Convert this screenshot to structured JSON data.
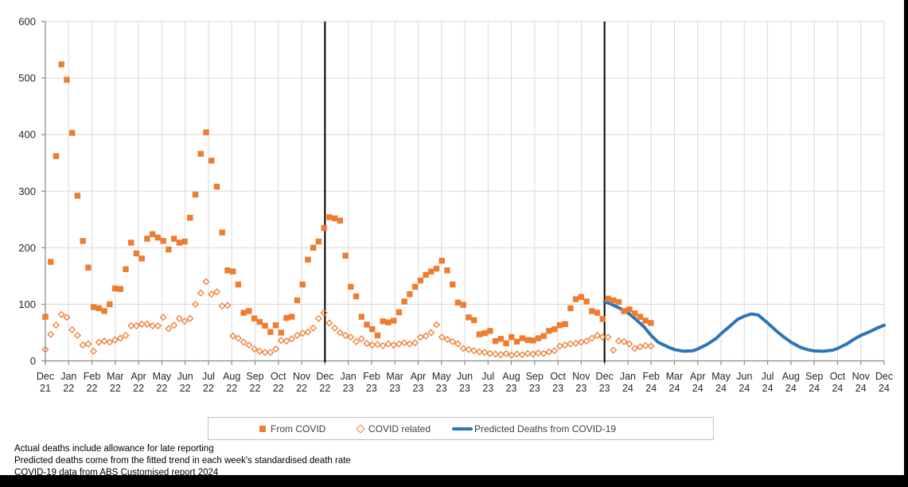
{
  "colors": {
    "accent_orange": "#ED7D31",
    "accent_blue": "#2E75B6",
    "gridline": "#D9D9D9",
    "axis": "#898989",
    "label": "#262626",
    "divider": "#000000"
  },
  "legend": {
    "items": [
      {
        "label": "From COVID",
        "marker": "filled-square"
      },
      {
        "label": "COVID related",
        "marker": "hollow-diamond"
      },
      {
        "label": "Predicted Deaths from COVID-19",
        "marker": "line"
      }
    ]
  },
  "footnotes": [
    "Actual deaths include allowance for late reporting",
    "Predicted deaths  come from the fitted trend in each week's standardised death rate",
    "COVID-19 data from ABS Customised report 2024"
  ],
  "chart_data": {
    "type": "scatter",
    "title": "",
    "xlabel": "",
    "ylabel": "",
    "grid": true,
    "legend_position": "bottom",
    "y_axis": {
      "min": 0,
      "max": 600,
      "step": 100,
      "tick_labels": [
        "0",
        "100",
        "200",
        "300",
        "400",
        "500",
        "600"
      ]
    },
    "x_months": [
      {
        "m": "Dec",
        "y": "21"
      },
      {
        "m": "Jan",
        "y": "22"
      },
      {
        "m": "Feb",
        "y": "22"
      },
      {
        "m": "Mar",
        "y": "22"
      },
      {
        "m": "Apr",
        "y": "22"
      },
      {
        "m": "May",
        "y": "22"
      },
      {
        "m": "Jun",
        "y": "22"
      },
      {
        "m": "Jul",
        "y": "22"
      },
      {
        "m": "Aug",
        "y": "22"
      },
      {
        "m": "Sep",
        "y": "22"
      },
      {
        "m": "Oct",
        "y": "22"
      },
      {
        "m": "Nov",
        "y": "22"
      },
      {
        "m": "Dec",
        "y": "22"
      },
      {
        "m": "Jan",
        "y": "23"
      },
      {
        "m": "Feb",
        "y": "23"
      },
      {
        "m": "Mar",
        "y": "23"
      },
      {
        "m": "Apr",
        "y": "23"
      },
      {
        "m": "May",
        "y": "23"
      },
      {
        "m": "Jun",
        "y": "23"
      },
      {
        "m": "Jul",
        "y": "23"
      },
      {
        "m": "Aug",
        "y": "23"
      },
      {
        "m": "Sep",
        "y": "23"
      },
      {
        "m": "Oct",
        "y": "23"
      },
      {
        "m": "Nov",
        "y": "23"
      },
      {
        "m": "Dec",
        "y": "23"
      },
      {
        "m": "Jan",
        "y": "24"
      },
      {
        "m": "Feb",
        "y": "24"
      },
      {
        "m": "Mar",
        "y": "24"
      },
      {
        "m": "Apr",
        "y": "24"
      },
      {
        "m": "May",
        "y": "24"
      },
      {
        "m": "Jun",
        "y": "24"
      },
      {
        "m": "Jul",
        "y": "24"
      },
      {
        "m": "Aug",
        "y": "24"
      },
      {
        "m": "Sep",
        "y": "24"
      },
      {
        "m": "Oct",
        "y": "24"
      },
      {
        "m": "Nov",
        "y": "24"
      },
      {
        "m": "Dec",
        "y": "24"
      }
    ],
    "event_divider_lines_at_month": [
      12,
      24
    ],
    "series": [
      {
        "name": "From COVID",
        "marker": "filled-square",
        "cadence": "weekly",
        "start_month": "Dec 2021",
        "values": [
          78,
          175,
          362,
          524,
          497,
          403,
          292,
          212,
          165,
          95,
          93,
          88,
          100,
          128,
          127,
          162,
          209,
          190,
          181,
          216,
          224,
          218,
          212,
          197,
          216,
          209,
          211,
          253,
          294,
          366,
          404,
          354,
          308,
          227,
          160,
          158,
          135,
          85,
          88,
          75,
          69,
          62,
          51,
          63,
          50,
          76,
          78,
          107,
          135,
          179,
          200,
          211,
          235,
          254,
          252,
          248,
          186,
          131,
          114,
          78,
          64,
          56,
          45,
          70,
          68,
          71,
          86,
          105,
          118,
          131,
          142,
          152,
          158,
          163,
          177,
          160,
          135,
          103,
          99,
          77,
          72,
          47,
          49,
          53,
          35,
          39,
          31,
          42,
          34,
          40,
          37,
          36,
          40,
          44,
          53,
          56,
          63,
          65,
          93,
          109,
          113,
          105,
          88,
          85,
          74,
          110,
          107,
          104,
          88,
          91,
          84,
          78,
          71,
          67
        ]
      },
      {
        "name": "COVID related",
        "marker": "hollow-diamond",
        "cadence": "weekly",
        "start_month": "Dec 2021",
        "values": [
          20,
          47,
          63,
          82,
          77,
          55,
          45,
          28,
          30,
          17,
          33,
          35,
          33,
          37,
          40,
          45,
          62,
          62,
          65,
          65,
          62,
          62,
          77,
          57,
          63,
          75,
          70,
          75,
          100,
          120,
          140,
          118,
          122,
          97,
          98,
          44,
          40,
          33,
          28,
          21,
          17,
          15,
          15,
          21,
          36,
          35,
          39,
          45,
          49,
          51,
          58,
          75,
          85,
          67,
          58,
          50,
          45,
          42,
          34,
          39,
          31,
          28,
          29,
          27,
          30,
          28,
          30,
          32,
          30,
          32,
          42,
          44,
          50,
          64,
          42,
          38,
          34,
          30,
          22,
          20,
          18,
          16,
          15,
          13,
          12,
          11,
          13,
          10,
          12,
          11,
          13,
          12,
          14,
          13,
          16,
          18,
          26,
          28,
          30,
          31,
          33,
          35,
          40,
          45,
          42,
          42,
          19,
          35,
          34,
          30,
          22,
          25,
          27,
          26
        ]
      },
      {
        "name": "Predicted Deaths from COVID-19",
        "marker": "line",
        "cadence": "monthly-offset-points",
        "points": [
          [
            24.0,
            105
          ],
          [
            24.3,
            100
          ],
          [
            24.7,
            92
          ],
          [
            25.0,
            85
          ],
          [
            25.3,
            75
          ],
          [
            25.7,
            60
          ],
          [
            26.0,
            45
          ],
          [
            26.3,
            33
          ],
          [
            26.7,
            25
          ],
          [
            27.0,
            20
          ],
          [
            27.4,
            17
          ],
          [
            27.8,
            18
          ],
          [
            28.0,
            21
          ],
          [
            28.4,
            29
          ],
          [
            28.8,
            40
          ],
          [
            29.0,
            48
          ],
          [
            29.4,
            62
          ],
          [
            29.7,
            73
          ],
          [
            30.0,
            79
          ],
          [
            30.3,
            83
          ],
          [
            30.6,
            81
          ],
          [
            31.0,
            67
          ],
          [
            31.4,
            52
          ],
          [
            31.7,
            42
          ],
          [
            32.0,
            33
          ],
          [
            32.4,
            24
          ],
          [
            32.7,
            20
          ],
          [
            33.0,
            17.5
          ],
          [
            33.4,
            17
          ],
          [
            33.8,
            19
          ],
          [
            34.0,
            22
          ],
          [
            34.4,
            30
          ],
          [
            34.7,
            38
          ],
          [
            35.0,
            45
          ],
          [
            35.4,
            52
          ],
          [
            35.7,
            58
          ],
          [
            36.0,
            63
          ]
        ]
      }
    ]
  }
}
